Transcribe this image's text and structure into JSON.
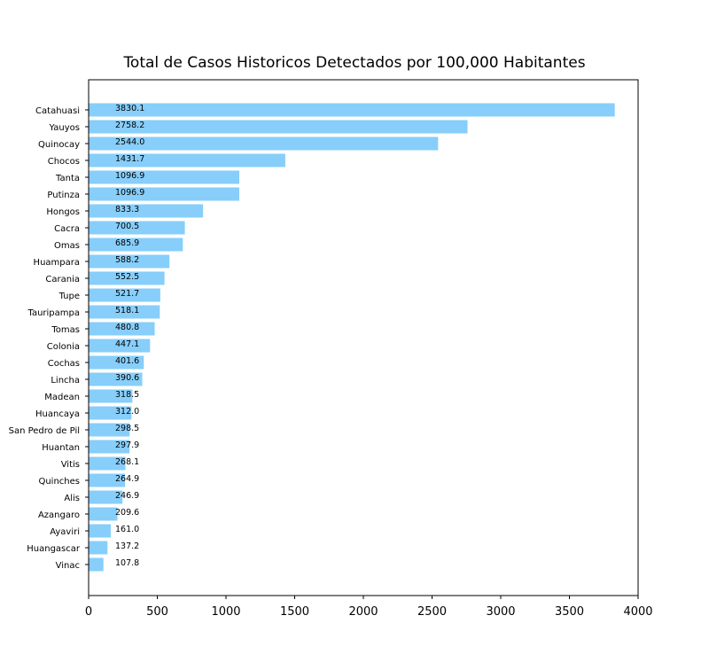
{
  "chart_data": {
    "type": "bar",
    "orientation": "horizontal",
    "title": "Total de Casos Historicos Detectados por 100,000 Habitantes",
    "xlabel": "",
    "ylabel": "",
    "xlim": [
      0,
      4000
    ],
    "xticks": [
      0,
      500,
      1000,
      1500,
      2000,
      2500,
      3000,
      3500,
      4000
    ],
    "grid": false,
    "bar_color": "#87CEFA",
    "categories": [
      "Catahuasi",
      "Yauyos",
      "Quinocay",
      "Chocos",
      "Tanta",
      "Putinza",
      "Hongos",
      "Cacra",
      "Omas",
      "Huampara",
      "Carania",
      "Tupe",
      "Tauripampa",
      "Tomas",
      "Colonia",
      "Cochas",
      "Lincha",
      "Madean",
      "Huancaya",
      "San Pedro de Pil",
      "Huantan",
      "Vitis",
      "Quinches",
      "Alis",
      "Azangaro",
      "Ayaviri",
      "Huangascar",
      "Vinac"
    ],
    "values": [
      3830.1,
      2758.2,
      2544.0,
      1431.7,
      1096.9,
      1096.9,
      833.3,
      700.5,
      685.9,
      588.2,
      552.5,
      521.7,
      518.1,
      480.8,
      447.1,
      401.6,
      390.6,
      318.5,
      312.0,
      298.5,
      297.9,
      268.1,
      264.9,
      246.9,
      209.6,
      161.0,
      137.2,
      107.8
    ],
    "value_labels": [
      "3830.1",
      "2758.2",
      "2544.0",
      "1431.7",
      "1096.9",
      "1096.9",
      "833.3",
      "700.5",
      "685.9",
      "588.2",
      "552.5",
      "521.7",
      "518.1",
      "480.8",
      "447.1",
      "401.6",
      "390.6",
      "318.5",
      "312.0",
      "298.5",
      "297.9",
      "268.1",
      "264.9",
      "246.9",
      "209.6",
      "161.0",
      "137.2",
      "107.8"
    ]
  }
}
